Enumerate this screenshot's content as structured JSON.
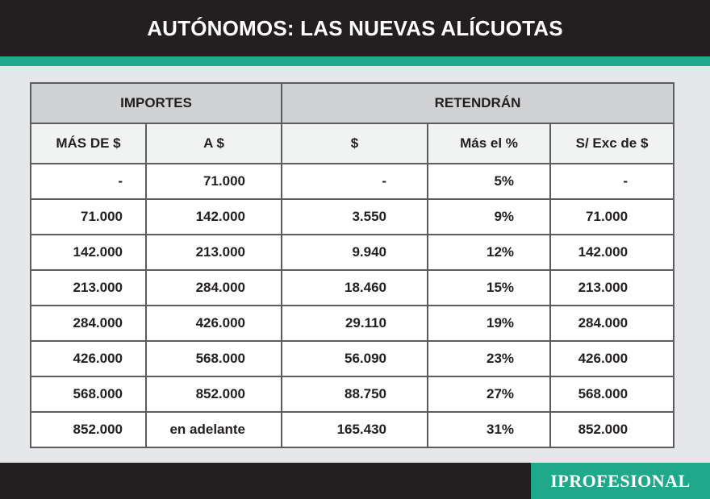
{
  "title": "AUTÓNOMOS: LAS NUEVAS ALÍCUOTAS",
  "colors": {
    "header_bg": "#231f20",
    "accent": "#1fa88a",
    "group_header_bg": "#d0d2d3"
  },
  "table": {
    "group_headers": [
      "IMPORTES",
      "RETENDRÁN"
    ],
    "columns": [
      "MÁS DE $",
      "A $",
      "$",
      "Más el %",
      "S/ Exc de $"
    ],
    "rows": [
      [
        "-",
        "71.000",
        "-",
        "5%",
        "-"
      ],
      [
        "71.000",
        "142.000",
        "3.550",
        "9%",
        "71.000"
      ],
      [
        "142.000",
        "213.000",
        "9.940",
        "12%",
        "142.000"
      ],
      [
        "213.000",
        "284.000",
        "18.460",
        "15%",
        "213.000"
      ],
      [
        "284.000",
        "426.000",
        "29.110",
        "19%",
        "284.000"
      ],
      [
        "426.000",
        "568.000",
        "56.090",
        "23%",
        "426.000"
      ],
      [
        "568.000",
        "852.000",
        "88.750",
        "27%",
        "568.000"
      ],
      [
        "852.000",
        "en adelante",
        "165.430",
        "31%",
        "852.000"
      ]
    ]
  },
  "footer": {
    "logo_text": "IPROFESIONAL"
  }
}
